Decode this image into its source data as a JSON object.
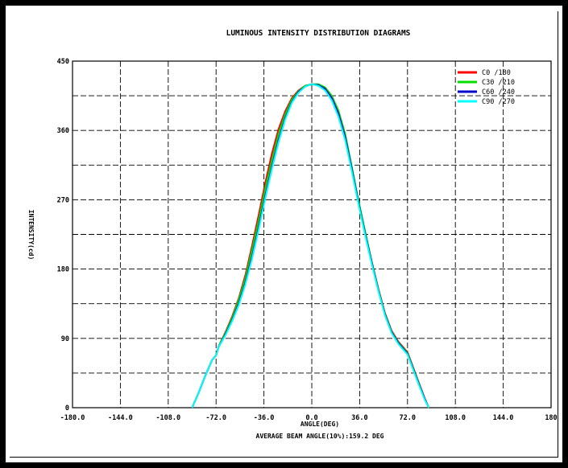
{
  "chart_data": {
    "type": "line",
    "title": "LUMINOUS INTENSITY DISTRIBUTION DIAGRAMS",
    "xlabel": "ANGLE(DEG)",
    "ylabel": "INTENSITY(cd)",
    "subtitle": "AVERAGE BEAM ANGLE(10%):159.2 DEG",
    "xlim": [
      -180,
      180
    ],
    "ylim": [
      0,
      450
    ],
    "x_ticks": [
      "-180.0",
      "-144.0",
      "-108.0",
      "-72.0",
      "-36.0",
      "0.0",
      "36.0",
      "72.0",
      "108.0",
      "144.0",
      "180"
    ],
    "y_ticks": [
      "0",
      "90",
      "180",
      "270",
      "360",
      "450"
    ],
    "grid": true,
    "legend_position": "top-right",
    "series": [
      {
        "name": "C0   /180",
        "color": "#ff0000",
        "x": [
          -90,
          -85,
          -80,
          -75,
          -72,
          -70,
          -65,
          -60,
          -55,
          -50,
          -45,
          -40,
          -35,
          -30,
          -25,
          -20,
          -15,
          -10,
          -5,
          0,
          5,
          10,
          15,
          20,
          25,
          30,
          35,
          40,
          45,
          50,
          55,
          60,
          65,
          70,
          72,
          75,
          80,
          85,
          88
        ],
        "y": [
          0,
          20,
          42,
          62,
          68,
          80,
          98,
          118,
          142,
          172,
          210,
          250,
          292,
          330,
          362,
          385,
          402,
          412,
          418,
          420,
          419,
          414,
          402,
          382,
          352,
          310,
          268,
          228,
          190,
          155,
          123,
          100,
          86,
          76,
          72,
          58,
          35,
          12,
          0
        ]
      },
      {
        "name": "C30 /210",
        "color": "#00dd00",
        "x": [
          -90,
          -85,
          -80,
          -75,
          -72,
          -70,
          -65,
          -60,
          -55,
          -50,
          -45,
          -40,
          -35,
          -30,
          -25,
          -20,
          -15,
          -10,
          -5,
          0,
          5,
          10,
          15,
          20,
          25,
          30,
          35,
          40,
          45,
          50,
          55,
          60,
          65,
          70,
          72,
          75,
          80,
          85,
          88
        ],
        "y": [
          0,
          20,
          42,
          62,
          68,
          80,
          97,
          116,
          140,
          168,
          205,
          243,
          285,
          322,
          356,
          381,
          400,
          411,
          418,
          420,
          420,
          416,
          405,
          386,
          356,
          314,
          270,
          230,
          190,
          154,
          122,
          99,
          85,
          75,
          71,
          57,
          34,
          11,
          0
        ]
      },
      {
        "name": "C60 /240",
        "color": "#0000cc",
        "x": [
          -90,
          -85,
          -80,
          -75,
          -72,
          -70,
          -65,
          -60,
          -55,
          -50,
          -45,
          -40,
          -35,
          -30,
          -25,
          -20,
          -15,
          -10,
          -5,
          0,
          5,
          10,
          15,
          20,
          25,
          30,
          35,
          40,
          45,
          50,
          55,
          60,
          65,
          70,
          72,
          75,
          80,
          85,
          88
        ],
        "y": [
          0,
          20,
          42,
          62,
          68,
          79,
          95,
          113,
          135,
          162,
          196,
          234,
          275,
          313,
          348,
          376,
          397,
          410,
          417,
          420,
          419,
          414,
          402,
          382,
          352,
          311,
          267,
          227,
          189,
          153,
          121,
          98,
          84,
          74,
          70,
          56,
          33,
          11,
          0
        ]
      },
      {
        "name": "C90 /270",
        "color": "#00ffff",
        "x": [
          -90,
          -85,
          -80,
          -75,
          -72,
          -70,
          -65,
          -60,
          -55,
          -50,
          -45,
          -40,
          -35,
          -30,
          -25,
          -20,
          -15,
          -10,
          -5,
          0,
          5,
          10,
          15,
          20,
          25,
          30,
          35,
          40,
          45,
          50,
          55,
          60,
          65,
          70,
          72,
          75,
          80,
          85,
          88
        ],
        "y": [
          0,
          20,
          42,
          62,
          68,
          79,
          94,
          112,
          133,
          160,
          193,
          231,
          272,
          310,
          345,
          374,
          396,
          409,
          417,
          420,
          418,
          412,
          399,
          378,
          348,
          308,
          265,
          225,
          187,
          152,
          120,
          97,
          83,
          73,
          69,
          55,
          32,
          10,
          0
        ]
      }
    ]
  }
}
